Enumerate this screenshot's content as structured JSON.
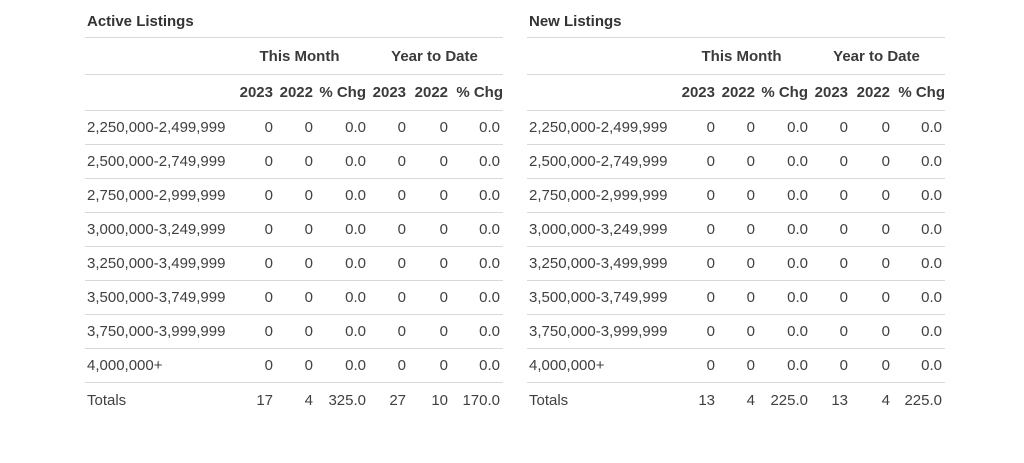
{
  "colors": {
    "background": "#ffffff",
    "body_text": "#404040",
    "heading_text": "#333333",
    "border": "#d8d8d8"
  },
  "tables": [
    {
      "title": "Active Listings",
      "group_headers": [
        "This Month",
        "Year to Date"
      ],
      "column_headers": [
        "2023",
        "2022",
        "% Chg",
        "2023",
        "2022",
        "% Chg"
      ],
      "rows": [
        {
          "label": "2,250,000-2,499,999",
          "values": [
            "0",
            "0",
            "0.0",
            "0",
            "0",
            "0.0"
          ]
        },
        {
          "label": "2,500,000-2,749,999",
          "values": [
            "0",
            "0",
            "0.0",
            "0",
            "0",
            "0.0"
          ]
        },
        {
          "label": "2,750,000-2,999,999",
          "values": [
            "0",
            "0",
            "0.0",
            "0",
            "0",
            "0.0"
          ]
        },
        {
          "label": "3,000,000-3,249,999",
          "values": [
            "0",
            "0",
            "0.0",
            "0",
            "0",
            "0.0"
          ]
        },
        {
          "label": "3,250,000-3,499,999",
          "values": [
            "0",
            "0",
            "0.0",
            "0",
            "0",
            "0.0"
          ]
        },
        {
          "label": "3,500,000-3,749,999",
          "values": [
            "0",
            "0",
            "0.0",
            "0",
            "0",
            "0.0"
          ]
        },
        {
          "label": "3,750,000-3,999,999",
          "values": [
            "0",
            "0",
            "0.0",
            "0",
            "0",
            "0.0"
          ]
        },
        {
          "label": "4,000,000+",
          "values": [
            "0",
            "0",
            "0.0",
            "0",
            "0",
            "0.0"
          ]
        }
      ],
      "totals": {
        "label": "Totals",
        "values": [
          "17",
          "4",
          "325.0",
          "27",
          "10",
          "170.0"
        ]
      }
    },
    {
      "title": "New Listings",
      "group_headers": [
        "This Month",
        "Year to Date"
      ],
      "column_headers": [
        "2023",
        "2022",
        "% Chg",
        "2023",
        "2022",
        "% Chg"
      ],
      "rows": [
        {
          "label": "2,250,000-2,499,999",
          "values": [
            "0",
            "0",
            "0.0",
            "0",
            "0",
            "0.0"
          ]
        },
        {
          "label": "2,500,000-2,749,999",
          "values": [
            "0",
            "0",
            "0.0",
            "0",
            "0",
            "0.0"
          ]
        },
        {
          "label": "2,750,000-2,999,999",
          "values": [
            "0",
            "0",
            "0.0",
            "0",
            "0",
            "0.0"
          ]
        },
        {
          "label": "3,000,000-3,249,999",
          "values": [
            "0",
            "0",
            "0.0",
            "0",
            "0",
            "0.0"
          ]
        },
        {
          "label": "3,250,000-3,499,999",
          "values": [
            "0",
            "0",
            "0.0",
            "0",
            "0",
            "0.0"
          ]
        },
        {
          "label": "3,500,000-3,749,999",
          "values": [
            "0",
            "0",
            "0.0",
            "0",
            "0",
            "0.0"
          ]
        },
        {
          "label": "3,750,000-3,999,999",
          "values": [
            "0",
            "0",
            "0.0",
            "0",
            "0",
            "0.0"
          ]
        },
        {
          "label": "4,000,000+",
          "values": [
            "0",
            "0",
            "0.0",
            "0",
            "0",
            "0.0"
          ]
        }
      ],
      "totals": {
        "label": "Totals",
        "values": [
          "13",
          "4",
          "225.0",
          "13",
          "4",
          "225.0"
        ]
      }
    }
  ]
}
